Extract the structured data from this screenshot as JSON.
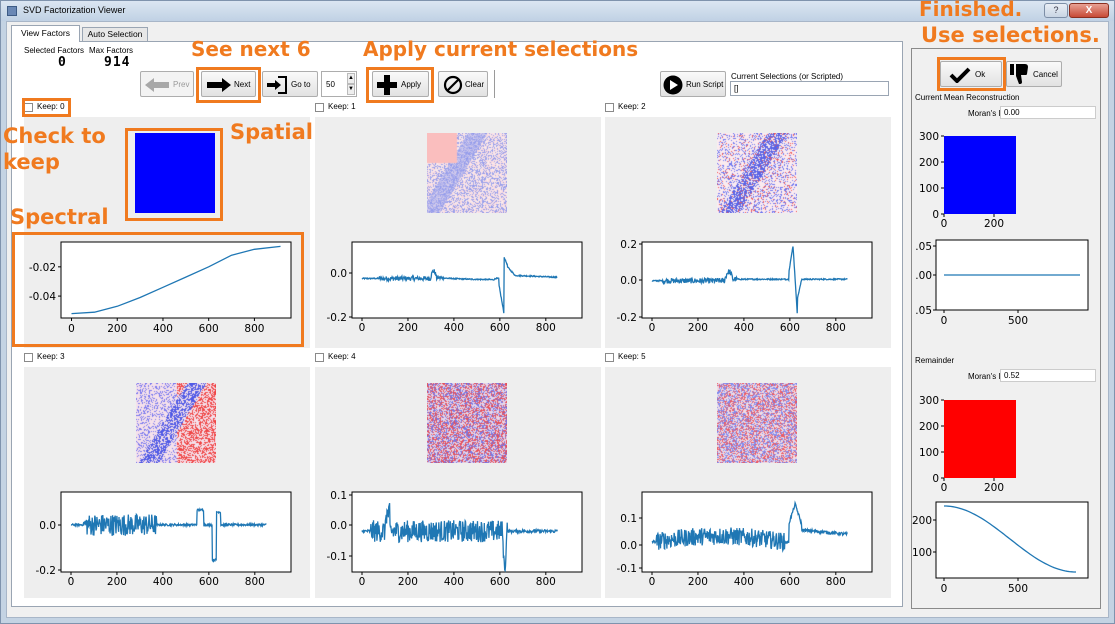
{
  "window": {
    "title": "SVD Factorization Viewer",
    "help_label": "?",
    "close_label": "X"
  },
  "tabs": [
    {
      "label": "View Factors"
    },
    {
      "label": "Auto Selection"
    }
  ],
  "toolbar": {
    "selected_factors_label": "Selected Factors",
    "max_factors_label": "Max Factors",
    "selected_factors_value": "0",
    "max_factors_value": "914",
    "prev_label": "Prev",
    "next_label": "Next",
    "goto_label": "Go to",
    "goto_value": "50",
    "apply_label": "Apply",
    "clear_label": "Clear",
    "run_script_label": "Run Script",
    "current_selections_label": "Current Selections (or Scripted)",
    "current_selections_value": "[]"
  },
  "factors": [
    {
      "keep_label": "Keep: 0"
    },
    {
      "keep_label": "Keep: 1"
    },
    {
      "keep_label": "Keep: 2"
    },
    {
      "keep_label": "Keep: 3"
    },
    {
      "keep_label": "Keep: 4"
    },
    {
      "keep_label": "Keep: 5"
    }
  ],
  "colors": {
    "accent": "#f07a1f",
    "line": "#1f77b4",
    "spatial_blue": "#0000ff",
    "spatial_red": "#ff0000"
  },
  "right_panel": {
    "ok_label": "Ok",
    "cancel_label": "Cancel",
    "mean_label": "Current Mean Reconstruction",
    "moran_label": "Moran's I",
    "moran_mean_value": "0.00",
    "remainder_label": "Remainder",
    "moran_remainder_value": "0.52"
  },
  "annotations": {
    "see_next": "See next 6",
    "apply_current": "Apply current selections",
    "finished": "Finished.",
    "use_selections": "Use selections.",
    "check_to": "Check to",
    "keep": "keep",
    "spatial": "Spatial",
    "spectral": "Spectral"
  },
  "chart_data": [
    {
      "type": "line",
      "name": "factor-0-spectral",
      "x_ticks": [
        "0",
        "200",
        "400",
        "600",
        "800"
      ],
      "y_ticks": [
        "-0.02",
        "-0.04"
      ],
      "x": [
        0,
        100,
        200,
        300,
        400,
        500,
        600,
        700,
        800,
        914
      ],
      "y": [
        -0.052,
        -0.051,
        -0.047,
        -0.041,
        -0.034,
        -0.027,
        -0.02,
        -0.012,
        -0.008,
        -0.006
      ]
    },
    {
      "type": "line",
      "name": "factor-1-spectral",
      "x_ticks": [
        "0",
        "200",
        "400",
        "600",
        "800"
      ],
      "y_ticks": [
        "0.0",
        "-0.2"
      ]
    },
    {
      "type": "line",
      "name": "factor-2-spectral",
      "x_ticks": [
        "0",
        "200",
        "400",
        "600",
        "800"
      ],
      "y_ticks": [
        "0.2",
        "0.0",
        "-0.2"
      ]
    },
    {
      "type": "line",
      "name": "factor-3-spectral",
      "x_ticks": [
        "0",
        "200",
        "400",
        "600",
        "800"
      ],
      "y_ticks": [
        "0.0",
        "-0.2"
      ]
    },
    {
      "type": "line",
      "name": "factor-4-spectral",
      "x_ticks": [
        "0",
        "200",
        "400",
        "600",
        "800"
      ],
      "y_ticks": [
        "0.1",
        "0.0",
        "-0.1"
      ]
    },
    {
      "type": "line",
      "name": "factor-5-spectral",
      "x_ticks": [
        "0",
        "200",
        "400",
        "600",
        "800"
      ],
      "y_ticks": [
        "0.1",
        "0.0",
        "-0.1"
      ]
    },
    {
      "type": "heatmap",
      "name": "mean-reconstruction-spatial",
      "x_ticks": [
        "0",
        "200"
      ],
      "y_ticks": [
        "300",
        "200",
        "100",
        "0"
      ]
    },
    {
      "type": "line",
      "name": "mean-reconstruction-spectral",
      "x_ticks": [
        "0",
        "500"
      ],
      "y_ticks": [
        ".05",
        ".00",
        ".05"
      ]
    },
    {
      "type": "heatmap",
      "name": "remainder-spatial",
      "x_ticks": [
        "0",
        "200"
      ],
      "y_ticks": [
        "300",
        "200",
        "100",
        "0"
      ]
    },
    {
      "type": "line",
      "name": "remainder-spectral",
      "x_ticks": [
        "0",
        "500"
      ],
      "y_ticks": [
        "200",
        "100"
      ]
    }
  ]
}
